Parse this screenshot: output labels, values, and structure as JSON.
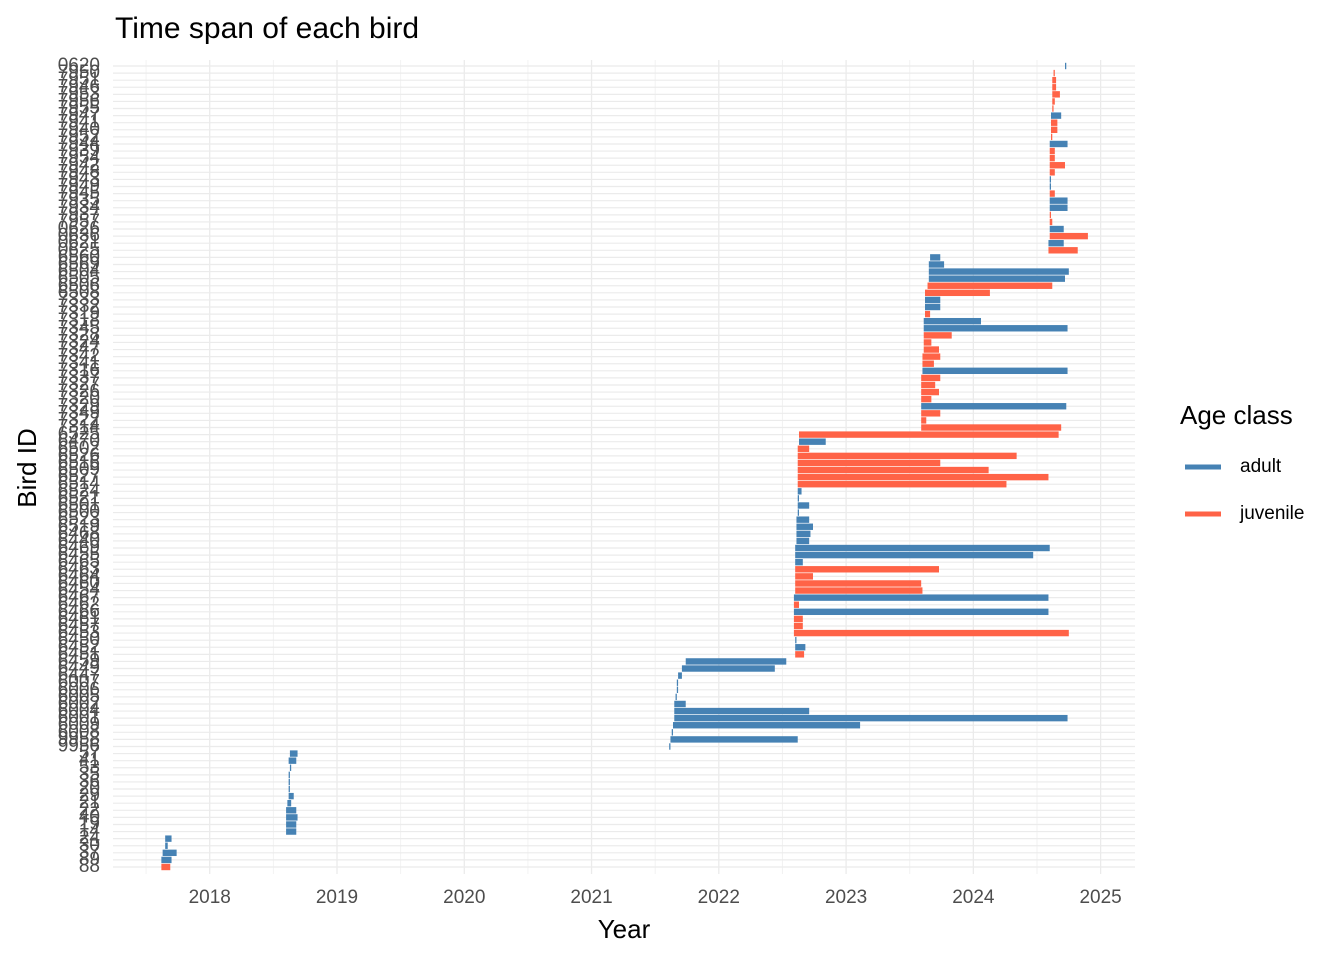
{
  "chart_data": {
    "type": "range_bar",
    "title": "Time span of each bird",
    "x_label": "Year",
    "y_label": "Bird ID",
    "legend_title": "Age class",
    "xlim": [
      2017.24,
      2025.27
    ],
    "xticks": [
      2018,
      2019,
      2020,
      2021,
      2022,
      2023,
      2024,
      2025
    ],
    "xminorticks": [
      2017.5,
      2018.5,
      2019.5,
      2020.5,
      2021.5,
      2022.5,
      2023.5,
      2024.5
    ],
    "grid": true,
    "legend_position": "right",
    "categories": [
      "0620",
      "7950",
      "7951",
      "7946",
      "7953",
      "7956",
      "7955",
      "7947",
      "7941",
      "7940",
      "7952",
      "7944",
      "7939",
      "7954",
      "7942",
      "7948",
      "7943",
      "7949",
      "7945",
      "7935",
      "7934",
      "7937",
      "7957",
      "0626",
      "0636",
      "0621",
      "0625",
      "6560",
      "6569",
      "6504",
      "6505",
      "6506",
      "6508",
      "7333",
      "7332",
      "7319",
      "7318",
      "7345",
      "7328",
      "7324",
      "7347",
      "7342",
      "7341",
      "7316",
      "7337",
      "7327",
      "7326",
      "7320",
      "7329",
      "7349",
      "7322",
      "7314",
      "6525",
      "6470",
      "6502",
      "6526",
      "6516",
      "6509",
      "6527",
      "6514",
      "6524",
      "6521",
      "6501",
      "6500",
      "6523",
      "6519",
      "6468",
      "6440",
      "6469",
      "6455",
      "6465",
      "6463",
      "6464",
      "6460",
      "6454",
      "6467",
      "6462",
      "6466",
      "6461",
      "6457",
      "6453",
      "6450",
      "6452",
      "6451",
      "6459",
      "6449",
      "6447",
      "6007",
      "6006",
      "6005",
      "6002",
      "6004",
      "6001",
      "6009",
      "6008",
      "9958",
      "9956",
      "57",
      "41",
      "53",
      "35",
      "36",
      "20",
      "29",
      "21",
      "22",
      "40",
      "19",
      "14",
      "24",
      "30",
      "37",
      "89",
      "88"
    ],
    "series": [
      {
        "name": "adult",
        "color": "#4682B4",
        "values": [
          [
            2024.72,
            2024.73
          ],
          null,
          null,
          null,
          null,
          null,
          null,
          [
            2024.61,
            2024.69
          ],
          null,
          null,
          null,
          [
            2024.6,
            2024.74
          ],
          null,
          null,
          null,
          null,
          [
            2024.6,
            2024.61
          ],
          [
            2024.6,
            2024.61
          ],
          null,
          [
            2024.6,
            2024.74
          ],
          [
            2024.6,
            2024.74
          ],
          null,
          null,
          [
            2024.6,
            2024.71
          ],
          null,
          [
            2024.59,
            2024.71
          ],
          null,
          [
            2023.66,
            2023.74
          ],
          [
            2023.65,
            2023.77
          ],
          [
            2023.65,
            2024.75
          ],
          [
            2023.65,
            2024.72
          ],
          null,
          null,
          [
            2023.62,
            2023.74
          ],
          [
            2023.62,
            2023.74
          ],
          null,
          [
            2023.61,
            2024.06
          ],
          [
            2023.61,
            2024.74
          ],
          null,
          null,
          null,
          null,
          null,
          [
            2023.6,
            2024.74
          ],
          null,
          null,
          null,
          null,
          [
            2023.59,
            2024.73
          ],
          null,
          null,
          null,
          null,
          [
            2022.63,
            2022.84
          ],
          null,
          null,
          null,
          null,
          null,
          null,
          [
            2022.62,
            2022.65
          ],
          [
            2022.62,
            2022.63
          ],
          [
            2022.62,
            2022.71
          ],
          [
            2022.62,
            2022.63
          ],
          [
            2022.61,
            2022.71
          ],
          [
            2022.61,
            2022.74
          ],
          [
            2022.61,
            2022.72
          ],
          [
            2022.61,
            2022.71
          ],
          [
            2022.6,
            2024.6
          ],
          [
            2022.6,
            2024.47
          ],
          [
            2022.6,
            2022.66
          ],
          null,
          null,
          null,
          null,
          [
            2022.59,
            2024.59
          ],
          null,
          [
            2022.59,
            2024.59
          ],
          null,
          null,
          null,
          [
            2022.6,
            2022.61
          ],
          [
            2022.6,
            2022.68
          ],
          null,
          [
            2021.74,
            2022.53
          ],
          [
            2021.71,
            2022.44
          ],
          [
            2021.68,
            2021.71
          ],
          [
            2021.67,
            2021.68
          ],
          [
            2021.67,
            2021.68
          ],
          [
            2021.66,
            2021.67
          ],
          [
            2021.65,
            2021.74
          ],
          [
            2021.65,
            2022.71
          ],
          [
            2021.65,
            2024.74
          ],
          [
            2021.64,
            2023.11
          ],
          [
            2021.63,
            2021.64
          ],
          [
            2021.62,
            2022.62
          ],
          [
            2021.61,
            2021.62
          ],
          [
            2018.63,
            2018.69
          ],
          [
            2018.62,
            2018.68
          ],
          [
            2018.63,
            2018.64
          ],
          [
            2018.62,
            2018.63
          ],
          [
            2018.62,
            2018.63
          ],
          [
            2018.62,
            2018.63
          ],
          [
            2018.62,
            2018.66
          ],
          [
            2018.61,
            2018.64
          ],
          [
            2018.6,
            2018.68
          ],
          [
            2018.6,
            2018.69
          ],
          [
            2018.6,
            2018.68
          ],
          [
            2018.6,
            2018.68
          ],
          [
            2017.65,
            2017.7
          ],
          [
            2017.65,
            2017.67
          ],
          [
            2017.63,
            2017.74
          ],
          [
            2017.62,
            2017.7
          ],
          null
        ]
      },
      {
        "name": "juvenile",
        "color": "#FF6347",
        "values": [
          null,
          [
            2024.63,
            2024.64
          ],
          [
            2024.62,
            2024.65
          ],
          [
            2024.62,
            2024.65
          ],
          [
            2024.62,
            2024.68
          ],
          [
            2024.62,
            2024.64
          ],
          [
            2024.62,
            2024.63
          ],
          null,
          [
            2024.61,
            2024.66
          ],
          [
            2024.61,
            2024.66
          ],
          [
            2024.61,
            2024.62
          ],
          null,
          [
            2024.6,
            2024.64
          ],
          [
            2024.6,
            2024.64
          ],
          [
            2024.6,
            2024.72
          ],
          [
            2024.6,
            2024.64
          ],
          null,
          null,
          [
            2024.6,
            2024.64
          ],
          null,
          null,
          [
            2024.6,
            2024.61
          ],
          [
            2024.6,
            2024.62
          ],
          null,
          [
            2024.6,
            2024.9
          ],
          null,
          [
            2024.59,
            2024.82
          ],
          null,
          null,
          null,
          null,
          [
            2023.64,
            2024.62
          ],
          [
            2023.62,
            2024.13
          ],
          null,
          null,
          [
            2023.62,
            2023.66
          ],
          null,
          null,
          [
            2023.61,
            2023.83
          ],
          [
            2023.61,
            2023.67
          ],
          [
            2023.61,
            2023.73
          ],
          [
            2023.6,
            2023.74
          ],
          [
            2023.6,
            2023.69
          ],
          null,
          [
            2023.59,
            2023.74
          ],
          [
            2023.59,
            2023.7
          ],
          [
            2023.59,
            2023.73
          ],
          [
            2023.59,
            2023.67
          ],
          null,
          [
            2023.59,
            2023.74
          ],
          [
            2023.59,
            2023.63
          ],
          [
            2023.59,
            2024.69
          ],
          [
            2022.63,
            2024.67
          ],
          null,
          [
            2022.62,
            2022.71
          ],
          [
            2022.62,
            2024.34
          ],
          [
            2022.62,
            2023.74
          ],
          [
            2022.62,
            2024.12
          ],
          [
            2022.62,
            2024.59
          ],
          [
            2022.62,
            2024.26
          ],
          null,
          null,
          null,
          null,
          null,
          null,
          null,
          null,
          null,
          null,
          null,
          [
            2022.6,
            2023.73
          ],
          [
            2022.6,
            2022.74
          ],
          [
            2022.6,
            2023.59
          ],
          [
            2022.6,
            2023.6
          ],
          null,
          [
            2022.59,
            2022.63
          ],
          null,
          [
            2022.59,
            2022.66
          ],
          [
            2022.59,
            2022.66
          ],
          [
            2022.59,
            2024.75
          ],
          null,
          null,
          [
            2022.6,
            2022.67
          ],
          null,
          null,
          null,
          null,
          null,
          null,
          null,
          null,
          null,
          null,
          null,
          null,
          null,
          null,
          null,
          null,
          null,
          null,
          null,
          null,
          null,
          null,
          null,
          null,
          null,
          null,
          null,
          null,
          null,
          [
            2017.62,
            2017.69
          ]
        ]
      }
    ]
  }
}
